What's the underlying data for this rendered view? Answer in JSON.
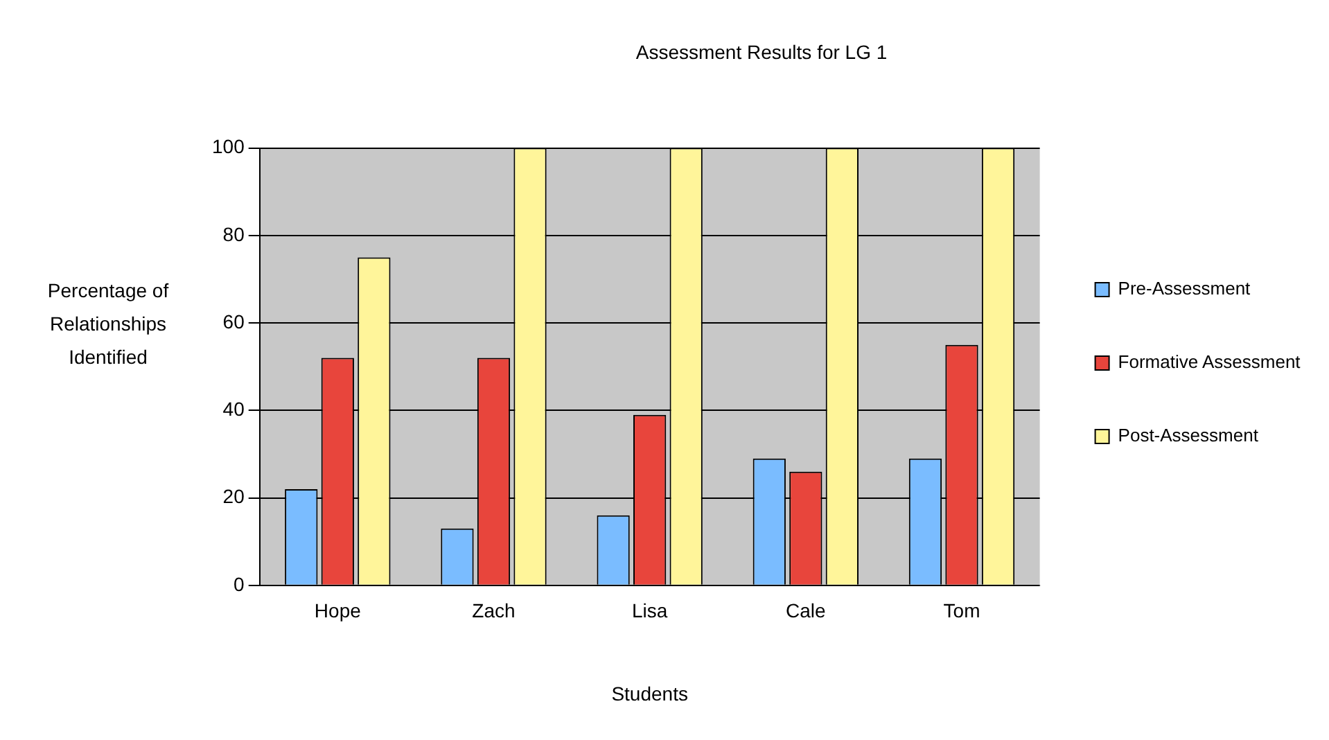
{
  "chart_data": {
    "type": "bar",
    "title": "Assessment Results for LG 1",
    "xlabel": "Students",
    "ylabel": "Percentage of Relationships Identified",
    "categories": [
      "Hope",
      "Zach",
      "Lisa",
      "Cale",
      "Tom"
    ],
    "series": [
      {
        "name": "Pre-Assessment",
        "color": "#7abcff",
        "values": [
          22,
          13,
          16,
          29,
          29
        ]
      },
      {
        "name": "Formative Assessment",
        "color": "#e8453c",
        "values": [
          52,
          52,
          39,
          26,
          55
        ]
      },
      {
        "name": "Post-Assessment",
        "color": "#fff59a",
        "values": [
          75,
          100,
          100,
          100,
          100
        ]
      }
    ],
    "ylim": [
      0,
      100
    ],
    "yticks": [
      0,
      20,
      40,
      60,
      80,
      100
    ],
    "grid": "y",
    "legend": "right"
  }
}
